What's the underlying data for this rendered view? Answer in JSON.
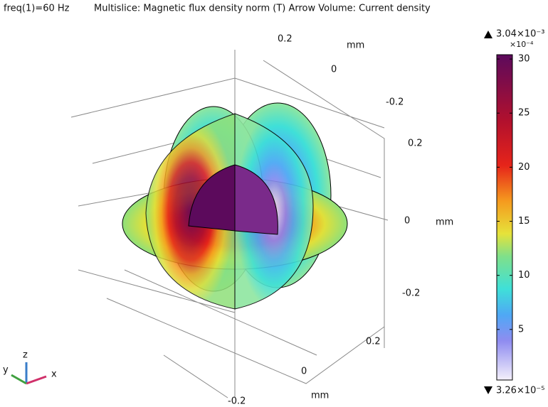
{
  "header": {
    "freq": "freq(1)=60 Hz",
    "title": "Multislice: Magnetic flux density norm (T)  Arrow Volume: Current density"
  },
  "axes": {
    "top": [
      "0.2",
      "mm",
      "0",
      "-0.2"
    ],
    "right": [
      "0.2",
      "0",
      "mm",
      "-0.2"
    ],
    "bottom": [
      "0.2",
      "0",
      "mm",
      "-0.2"
    ],
    "triad": [
      "z",
      "y",
      "x"
    ]
  },
  "colorbar": {
    "max_label": "3.04×10⁻³",
    "scale_label": "×10⁻⁴",
    "min_label": "3.26×10⁻⁵",
    "lim": [
      0.326,
      30.4
    ],
    "ticks": [
      5,
      10,
      15,
      20,
      25,
      30
    ]
  }
}
